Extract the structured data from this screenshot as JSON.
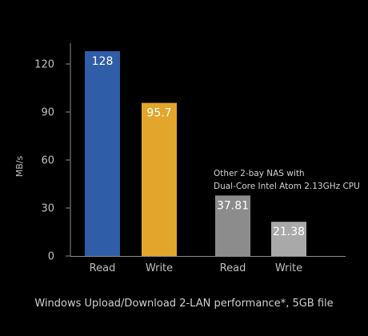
{
  "chart_data": {
    "type": "bar",
    "title": "",
    "caption": "Windows Upload/Download 2-LAN performance*, 5GB file",
    "ylabel": "MB/s",
    "xlabel": "",
    "ylim": [
      0,
      130
    ],
    "yticks": [
      0,
      30,
      60,
      90,
      120
    ],
    "grid": false,
    "categories": [
      "Read",
      "Write",
      "Read",
      "Write"
    ],
    "values": [
      128,
      95.7,
      37.81,
      21.38
    ],
    "value_labels": [
      "128",
      "95.7",
      "37.81",
      "21.38"
    ],
    "bar_colors": [
      "#2f5da8",
      "#e1a62b",
      "#8c8c8c",
      "#a9a9a9"
    ],
    "annotation": {
      "lines": [
        "Other 2-bay NAS with",
        "Dual-Core Intel Atom 2.13GHz CPU"
      ],
      "near": "third-and-fourth-bars"
    }
  }
}
